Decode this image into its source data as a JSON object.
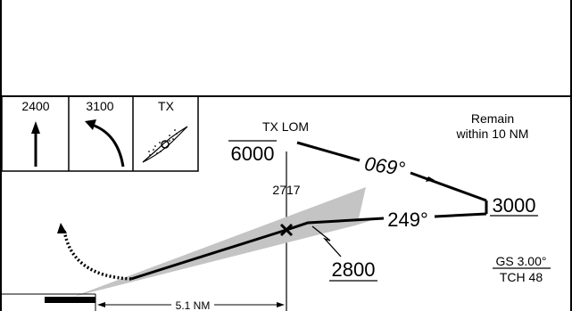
{
  "profile": {
    "altitudes_icons": [
      {
        "label": "2400",
        "icon": "arrow-up-icon"
      },
      {
        "label": "3100",
        "icon": "climbing-right-turn-icon"
      },
      {
        "label": "TX",
        "icon": "lom-ndb-icon"
      }
    ],
    "fix_name": "TX LOM",
    "fix_altitude": "6000",
    "fix_distance": "2717",
    "outbound_heading": "069°",
    "inbound_heading": "249°",
    "turn_altitude": "3000",
    "crossing_altitude": "2800",
    "remain_note": [
      "Remain",
      "within 10 NM"
    ],
    "glideslope": "GS 3.00°",
    "tch": "TCH 48",
    "distance_label": "5.1 NM"
  }
}
